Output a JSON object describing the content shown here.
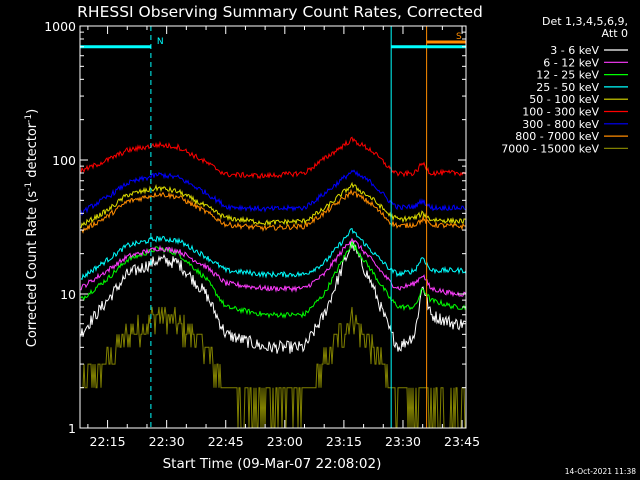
{
  "chart_data": {
    "type": "line",
    "title": "RHESSI Observing Summary Count Rates, Corrected",
    "xlabel": "Start Time (09-Mar-07 22:08:02)",
    "ylabel": "Corrected Count Rate (s-1 detector-1)",
    "ylabel_parts": {
      "main": "Corrected Count Rate (s",
      "sup1": "-1",
      "mid": " detector",
      "sup2": "-1",
      "end": ")"
    },
    "yscale": "log",
    "ylim": [
      1,
      1000
    ],
    "xlim_minutes": [
      22.13,
      23.77
    ],
    "xlim": [
      "22:08",
      "23:46"
    ],
    "y_ticks": [
      "1",
      "10",
      "100",
      "1000"
    ],
    "x_ticks": [
      "22:15",
      "22:30",
      "22:45",
      "23:00",
      "23:15",
      "23:30",
      "23:45"
    ],
    "legend": {
      "header": [
        "Det 1,3,4,5,6,9,",
        "Att 0"
      ],
      "position": "right"
    },
    "series": [
      {
        "name": "3 - 6 keV",
        "color": "#ffffff",
        "x": [
          "22:08",
          "22:15",
          "22:20",
          "22:28",
          "22:33",
          "22:40",
          "22:45",
          "22:55",
          "23:05",
          "23:10",
          "23:17",
          "23:22",
          "23:27",
          "23:29",
          "23:33",
          "23:35",
          "23:37",
          "23:43"
        ],
        "values": [
          5,
          9,
          14,
          18,
          17,
          10,
          5,
          4,
          4,
          7,
          24,
          12,
          5,
          4,
          5,
          12,
          7,
          6
        ]
      },
      {
        "name": "6 - 12 keV",
        "color": "#ff3cff",
        "x": [
          "22:08",
          "22:15",
          "22:20",
          "22:28",
          "22:33",
          "22:40",
          "22:45",
          "22:55",
          "23:05",
          "23:10",
          "23:17",
          "23:22",
          "23:27",
          "23:29",
          "23:33",
          "23:35",
          "23:37",
          "23:43"
        ],
        "values": [
          11,
          15,
          19,
          22,
          21,
          16,
          12,
          11,
          11,
          14,
          26,
          18,
          12,
          11,
          12,
          14,
          11,
          10
        ]
      },
      {
        "name": "12 - 25 keV",
        "color": "#00ff00",
        "x": [
          "22:08",
          "22:15",
          "22:20",
          "22:28",
          "22:33",
          "22:40",
          "22:45",
          "22:55",
          "23:05",
          "23:10",
          "23:17",
          "23:22",
          "23:27",
          "23:29",
          "23:33",
          "23:35",
          "23:37",
          "23:43"
        ],
        "values": [
          9,
          13,
          18,
          22,
          20,
          13,
          8,
          7,
          7,
          10,
          24,
          15,
          9,
          8,
          8,
          11,
          9,
          8
        ]
      },
      {
        "name": "25 - 50 keV",
        "color": "#00ffff",
        "x": [
          "22:08",
          "22:15",
          "22:20",
          "22:28",
          "22:33",
          "22:40",
          "22:45",
          "22:55",
          "23:05",
          "23:10",
          "23:17",
          "23:22",
          "23:27",
          "23:29",
          "23:33",
          "23:35",
          "23:37",
          "23:43"
        ],
        "values": [
          13,
          18,
          23,
          26,
          25,
          19,
          15,
          14,
          14,
          17,
          30,
          21,
          15,
          14,
          15,
          19,
          15,
          15
        ]
      },
      {
        "name": "50 - 100 keV",
        "color": "#dddd00",
        "x": [
          "22:08",
          "22:15",
          "22:20",
          "22:28",
          "22:33",
          "22:40",
          "22:45",
          "22:55",
          "23:05",
          "23:10",
          "23:17",
          "23:22",
          "23:27",
          "23:29",
          "23:33",
          "23:35",
          "23:37",
          "23:43"
        ],
        "values": [
          32,
          42,
          55,
          62,
          58,
          45,
          37,
          34,
          35,
          43,
          65,
          52,
          38,
          36,
          37,
          40,
          36,
          35
        ]
      },
      {
        "name": "100 - 300 keV",
        "color": "#ff0000",
        "x": [
          "22:08",
          "22:15",
          "22:20",
          "22:28",
          "22:33",
          "22:40",
          "22:45",
          "22:55",
          "23:05",
          "23:10",
          "23:17",
          "23:22",
          "23:27",
          "23:29",
          "23:33",
          "23:35",
          "23:37",
          "23:43"
        ],
        "values": [
          82,
          100,
          118,
          130,
          125,
          96,
          78,
          76,
          80,
          102,
          142,
          118,
          85,
          78,
          80,
          95,
          80,
          80
        ]
      },
      {
        "name": "300 - 800 keV",
        "color": "#0000ff",
        "x": [
          "22:08",
          "22:15",
          "22:20",
          "22:28",
          "22:33",
          "22:40",
          "22:45",
          "22:55",
          "23:05",
          "23:10",
          "23:17",
          "23:22",
          "23:27",
          "23:29",
          "23:33",
          "23:35",
          "23:37",
          "23:43"
        ],
        "values": [
          40,
          53,
          67,
          78,
          74,
          57,
          45,
          43,
          44,
          56,
          82,
          68,
          48,
          44,
          45,
          50,
          44,
          44
        ]
      },
      {
        "name": "800 - 7000 keV",
        "color": "#ff8c00",
        "x": [
          "22:08",
          "22:15",
          "22:20",
          "22:28",
          "22:33",
          "22:40",
          "22:45",
          "22:55",
          "23:05",
          "23:10",
          "23:17",
          "23:22",
          "23:27",
          "23:29",
          "23:33",
          "23:35",
          "23:37",
          "23:43"
        ],
        "values": [
          29,
          38,
          49,
          56,
          53,
          41,
          33,
          31,
          32,
          40,
          58,
          47,
          34,
          32,
          33,
          36,
          33,
          32
        ]
      },
      {
        "name": "7000 - 15000 keV",
        "color": "#808000",
        "x": [
          "22:08",
          "22:15",
          "22:20",
          "22:28",
          "22:33",
          "22:40",
          "22:45",
          "22:55",
          "23:05",
          "23:10",
          "23:17",
          "23:22",
          "23:27",
          "23:29",
          "23:33",
          "23:35",
          "23:37",
          "23:43"
        ],
        "values": [
          2,
          3,
          5,
          7,
          6,
          4,
          2,
          1.5,
          1.8,
          3,
          7,
          4,
          2,
          1.5,
          1.5,
          2,
          1.5,
          1.5
        ]
      }
    ],
    "annotations": [
      {
        "label": "N",
        "color": "#00ffff",
        "x_from": "22:08",
        "x_to": "22:26",
        "y": 700
      },
      {
        "label": "",
        "color": "#00ffff",
        "x_from": "23:27",
        "x_to": "23:46",
        "y": 700
      },
      {
        "label": "S",
        "color": "#ff8c00",
        "x_from": "23:36",
        "x_to": "23:46",
        "y": 760
      }
    ],
    "vertical_markers": [
      {
        "x": "22:26",
        "color": "#00ffff",
        "style": "dashed"
      },
      {
        "x": "23:27",
        "color": "#00ffff",
        "style": "solid"
      },
      {
        "x": "23:36",
        "color": "#ff8c00",
        "style": "solid"
      },
      {
        "x": "23:46",
        "color": "#00ffff",
        "style": "dashed"
      }
    ]
  },
  "footer": {
    "datestamp": "14-Oct-2021 11:38"
  }
}
